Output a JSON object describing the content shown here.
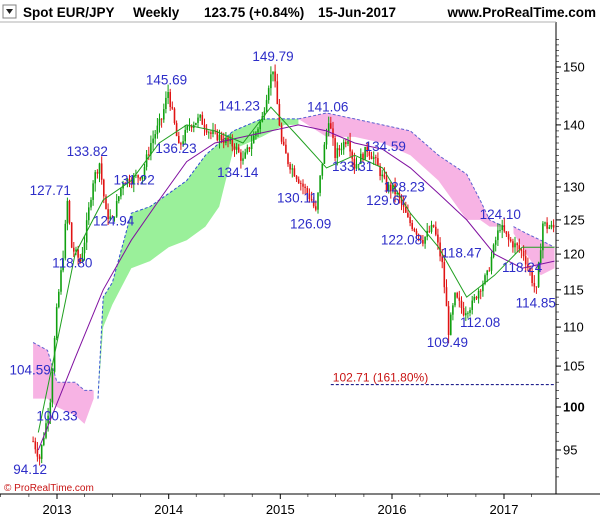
{
  "header": {
    "symbol": "Spot EUR/JPY",
    "timeframe": "Weekly",
    "quote": "123.75 (+0.84%)",
    "date": "15-Jun-2017",
    "site": "www.ProRealTime.com"
  },
  "copyright": "© ProRealTime.com",
  "colors": {
    "up_candle": "#10a010",
    "down_candle": "#e01414",
    "ma_fast": "#20a020",
    "ma_slow": "#8010a0",
    "cloud_bull": "#9af09a",
    "cloud_bear": "#f7b3e4",
    "annotation": "#2d2dc8",
    "fib_line": "#00007f"
  },
  "chart_data": {
    "type": "candlestick",
    "x_ticks": [
      "2013",
      "2014",
      "2015",
      "2016",
      "2017"
    ],
    "y_ticks": [
      "95",
      "100",
      "105",
      "110",
      "115",
      "120",
      "125",
      "130",
      "140",
      "150"
    ],
    "y_major": "100",
    "ylim": [
      90,
      156
    ],
    "grid": false,
    "price_path": [
      [
        "2012-10-15",
        96
      ],
      [
        "2012-11-05",
        94.1
      ],
      [
        "2012-11-26",
        98
      ],
      [
        "2012-12-10",
        101
      ],
      [
        "2012-12-31",
        112
      ],
      [
        "2013-01-21",
        120
      ],
      [
        "2013-02-04",
        127.7
      ],
      [
        "2013-02-18",
        121
      ],
      [
        "2013-03-18",
        119
      ],
      [
        "2013-04-01",
        122
      ],
      [
        "2013-04-29",
        131
      ],
      [
        "2013-05-20",
        133.8
      ],
      [
        "2013-06-10",
        126
      ],
      [
        "2013-07-01",
        124.9
      ],
      [
        "2013-08-05",
        131
      ],
      [
        "2013-09-02",
        131.2
      ],
      [
        "2013-10-07",
        132
      ],
      [
        "2013-11-04",
        137
      ],
      [
        "2013-12-09",
        141
      ],
      [
        "2013-12-30",
        145.7
      ],
      [
        "2014-02-03",
        136.2
      ],
      [
        "2014-03-10",
        140
      ],
      [
        "2014-04-14",
        141
      ],
      [
        "2014-05-19",
        138.5
      ],
      [
        "2014-06-16",
        138
      ],
      [
        "2014-08-04",
        136.5
      ],
      [
        "2014-09-01",
        134.1
      ],
      [
        "2014-10-06",
        138
      ],
      [
        "2014-11-03",
        141.2
      ],
      [
        "2014-11-24",
        147
      ],
      [
        "2014-12-08",
        149.8
      ],
      [
        "2015-01-05",
        137
      ],
      [
        "2015-01-26",
        134
      ],
      [
        "2015-03-16",
        130.1
      ],
      [
        "2015-04-13",
        128
      ],
      [
        "2015-04-27",
        126.1
      ],
      [
        "2015-05-18",
        134
      ],
      [
        "2015-06-08",
        141.1
      ],
      [
        "2015-06-29",
        135
      ],
      [
        "2015-08-10",
        138
      ],
      [
        "2015-08-31",
        133.3
      ],
      [
        "2015-10-12",
        136
      ],
      [
        "2015-11-02",
        134.6
      ],
      [
        "2015-12-14",
        130
      ],
      [
        "2016-01-04",
        129.7
      ],
      [
        "2016-01-25",
        128.2
      ],
      [
        "2016-02-22",
        125
      ],
      [
        "2016-04-11",
        122.1
      ],
      [
        "2016-05-16",
        124
      ],
      [
        "2016-06-13",
        118.5
      ],
      [
        "2016-07-04",
        109.5
      ],
      [
        "2016-07-25",
        114
      ],
      [
        "2016-08-22",
        112.1
      ],
      [
        "2016-09-19",
        113
      ],
      [
        "2016-10-10",
        115
      ],
      [
        "2016-11-07",
        117
      ],
      [
        "2016-12-05",
        122
      ],
      [
        "2016-12-19",
        124.1
      ],
      [
        "2017-01-16",
        122
      ],
      [
        "2017-02-13",
        121
      ],
      [
        "2017-03-06",
        120
      ],
      [
        "2017-03-20",
        118.2
      ],
      [
        "2017-04-10",
        115.5
      ],
      [
        "2017-04-17",
        114.8
      ],
      [
        "2017-05-08",
        124.5
      ],
      [
        "2017-05-22",
        124
      ],
      [
        "2017-06-15",
        123.75
      ]
    ],
    "ma_fast": [
      [
        "2012-11-01",
        97
      ],
      [
        "2013-01-01",
        108
      ],
      [
        "2013-03-01",
        120
      ],
      [
        "2013-06-01",
        128
      ],
      [
        "2013-09-01",
        131
      ],
      [
        "2013-12-01",
        137
      ],
      [
        "2014-03-01",
        140
      ],
      [
        "2014-06-01",
        139
      ],
      [
        "2014-09-01",
        137
      ],
      [
        "2014-12-01",
        143
      ],
      [
        "2015-03-01",
        138
      ],
      [
        "2015-06-01",
        133
      ],
      [
        "2015-09-01",
        135
      ],
      [
        "2015-12-01",
        133
      ],
      [
        "2016-03-01",
        126
      ],
      [
        "2016-06-01",
        121
      ],
      [
        "2016-09-01",
        114
      ],
      [
        "2016-12-01",
        117
      ],
      [
        "2017-03-01",
        121
      ],
      [
        "2017-06-15",
        121
      ]
    ],
    "ma_slow": [
      [
        "2012-11-01",
        95
      ],
      [
        "2013-03-01",
        106
      ],
      [
        "2013-06-01",
        115
      ],
      [
        "2013-09-01",
        122
      ],
      [
        "2013-12-01",
        128
      ],
      [
        "2014-03-01",
        134
      ],
      [
        "2014-06-01",
        137
      ],
      [
        "2014-09-01",
        138
      ],
      [
        "2014-12-01",
        139
      ],
      [
        "2015-03-01",
        140
      ],
      [
        "2015-06-01",
        139
      ],
      [
        "2015-09-01",
        137
      ],
      [
        "2015-12-01",
        136
      ],
      [
        "2016-03-01",
        133
      ],
      [
        "2016-06-01",
        129
      ],
      [
        "2016-09-01",
        125
      ],
      [
        "2016-12-01",
        120
      ],
      [
        "2017-03-01",
        118
      ],
      [
        "2017-06-15",
        119
      ]
    ],
    "cloud_bear_1": [
      [
        "2012-10-15",
        108,
        101
      ],
      [
        "2012-12-01",
        107,
        101
      ],
      [
        "2013-01-01",
        103,
        100
      ],
      [
        "2013-03-01",
        103,
        99
      ],
      [
        "2013-04-01",
        102,
        98
      ],
      [
        "2013-05-01",
        102,
        101
      ]
    ],
    "cloud_bull": [
      [
        "2013-05-15",
        101,
        101
      ],
      [
        "2013-06-01",
        114,
        110
      ],
      [
        "2013-07-01",
        116,
        113
      ],
      [
        "2013-09-01",
        126,
        118
      ],
      [
        "2013-11-01",
        127,
        119
      ],
      [
        "2014-01-01",
        129,
        121
      ],
      [
        "2014-03-01",
        131,
        122
      ],
      [
        "2014-05-01",
        135,
        124
      ],
      [
        "2014-06-15",
        137,
        127
      ],
      [
        "2014-08-01",
        139,
        136
      ],
      [
        "2014-11-01",
        141,
        138
      ],
      [
        "2015-01-15",
        141,
        140
      ],
      [
        "2015-03-01",
        141,
        140
      ]
    ],
    "cloud_bear_2": [
      [
        "2015-03-01",
        141,
        141
      ],
      [
        "2015-06-01",
        142,
        138
      ],
      [
        "2015-09-01",
        141,
        138
      ],
      [
        "2015-12-01",
        140,
        137
      ],
      [
        "2016-03-01",
        139,
        135
      ],
      [
        "2016-06-01",
        135,
        131
      ],
      [
        "2016-09-01",
        132,
        125
      ],
      [
        "2016-10-15",
        128,
        125
      ],
      [
        "2016-11-15",
        125,
        124
      ],
      [
        "2017-01-01",
        124,
        124
      ]
    ],
    "cloud_bear_3": [
      [
        "2017-02-01",
        124,
        123
      ],
      [
        "2017-03-15",
        123,
        120
      ],
      [
        "2017-05-01",
        122,
        117
      ],
      [
        "2017-06-15",
        121,
        118
      ]
    ],
    "annotations": [
      {
        "text": "94.12",
        "x": "2012-10-05",
        "y": 94.1,
        "place": "below"
      },
      {
        "text": "104.59",
        "x": "2012-10-05",
        "y": 104.6,
        "place": "on"
      },
      {
        "text": "100.33",
        "x": "2013-01-01",
        "y": 100.3,
        "place": "below"
      },
      {
        "text": "127.71",
        "x": "2012-12-10",
        "y": 127.7,
        "place": "above"
      },
      {
        "text": "118.80",
        "x": "2013-02-20",
        "y": 118.8,
        "place": "on"
      },
      {
        "text": "133.82",
        "x": "2013-04-10",
        "y": 133.8,
        "place": "above"
      },
      {
        "text": "124.94",
        "x": "2013-07-05",
        "y": 124.9,
        "place": "on"
      },
      {
        "text": "131.22",
        "x": "2013-09-10",
        "y": 131.2,
        "place": "on"
      },
      {
        "text": "145.69",
        "x": "2013-12-25",
        "y": 145.7,
        "place": "above"
      },
      {
        "text": "136.23",
        "x": "2014-01-25",
        "y": 136.2,
        "place": "on"
      },
      {
        "text": "134.14",
        "x": "2014-08-15",
        "y": 134.1,
        "place": "below"
      },
      {
        "text": "141.23",
        "x": "2014-08-20",
        "y": 141.2,
        "place": "above"
      },
      {
        "text": "149.79",
        "x": "2014-12-08",
        "y": 149.8,
        "place": "above"
      },
      {
        "text": "130.11",
        "x": "2015-02-25",
        "y": 130.1,
        "place": "below"
      },
      {
        "text": "126.09",
        "x": "2015-04-10",
        "y": 126.1,
        "place": "below"
      },
      {
        "text": "141.06",
        "x": "2015-06-05",
        "y": 141.1,
        "place": "above"
      },
      {
        "text": "133.31",
        "x": "2015-08-25",
        "y": 133.3,
        "place": "on"
      },
      {
        "text": "134.59",
        "x": "2015-12-10",
        "y": 134.6,
        "place": "above"
      },
      {
        "text": "129.67",
        "x": "2015-12-15",
        "y": 129.7,
        "place": "below"
      },
      {
        "text": "128.23",
        "x": "2016-02-10",
        "y": 128.2,
        "place": "above"
      },
      {
        "text": "122.08",
        "x": "2016-02-01",
        "y": 122.1,
        "place": "on"
      },
      {
        "text": "118.47",
        "x": "2016-08-15",
        "y": 118.5,
        "place": "above"
      },
      {
        "text": "109.49",
        "x": "2016-06-30",
        "y": 109.5,
        "place": "below"
      },
      {
        "text": "112.08",
        "x": "2016-10-15",
        "y": 112.1,
        "place": "below"
      },
      {
        "text": "124.10",
        "x": "2016-12-20",
        "y": 124.1,
        "place": "above"
      },
      {
        "text": "118.24",
        "x": "2017-03-01",
        "y": 118.2,
        "place": "on"
      },
      {
        "text": "114.85",
        "x": "2017-04-15",
        "y": 114.8,
        "place": "below"
      }
    ],
    "fib_level": {
      "value": 102.71,
      "label": "102.71 (161.80%)",
      "from": "2015-06-15",
      "to": "2017-06-30"
    }
  }
}
